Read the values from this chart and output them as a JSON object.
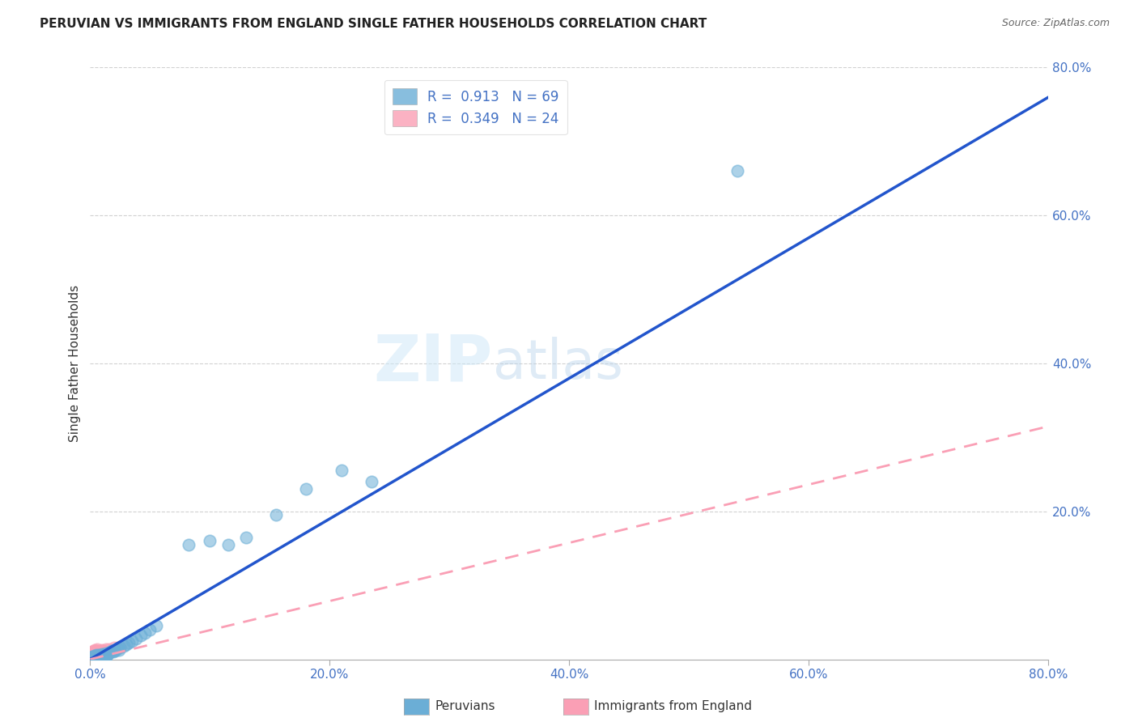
{
  "title": "PERUVIAN VS IMMIGRANTS FROM ENGLAND SINGLE FATHER HOUSEHOLDS CORRELATION CHART",
  "source": "Source: ZipAtlas.com",
  "ylabel": "Single Father Households",
  "xlim": [
    0,
    0.8
  ],
  "ylim": [
    0,
    0.8
  ],
  "xtick_labels": [
    "0.0%",
    "20.0%",
    "40.0%",
    "60.0%",
    "80.0%"
  ],
  "xtick_vals": [
    0.0,
    0.2,
    0.4,
    0.6,
    0.8
  ],
  "ytick_labels": [
    "20.0%",
    "40.0%",
    "60.0%",
    "80.0%"
  ],
  "ytick_vals": [
    0.2,
    0.4,
    0.6,
    0.8
  ],
  "peruvian_color": "#6baed6",
  "england_color": "#fa9fb5",
  "peruvian_R": 0.913,
  "peruvian_N": 69,
  "england_R": 0.349,
  "england_N": 24,
  "legend_label_1": "Peruvians",
  "legend_label_2": "Immigrants from England",
  "background_color": "#ffffff",
  "grid_color": "#cccccc",
  "watermark_zip": "ZIP",
  "watermark_atlas": "atlas",
  "peru_line_x": [
    0.0,
    0.8
  ],
  "peru_line_y": [
    0.0,
    0.76
  ],
  "eng_line_x": [
    0.0,
    0.8
  ],
  "eng_line_y": [
    0.0,
    0.315
  ],
  "peru_scatter_x": [
    0.001,
    0.001,
    0.001,
    0.002,
    0.002,
    0.002,
    0.002,
    0.003,
    0.003,
    0.003,
    0.004,
    0.004,
    0.004,
    0.004,
    0.005,
    0.005,
    0.005,
    0.005,
    0.006,
    0.006,
    0.006,
    0.007,
    0.007,
    0.007,
    0.007,
    0.008,
    0.008,
    0.009,
    0.009,
    0.009,
    0.01,
    0.01,
    0.01,
    0.011,
    0.011,
    0.012,
    0.012,
    0.013,
    0.013,
    0.014,
    0.014,
    0.015,
    0.016,
    0.017,
    0.018,
    0.019,
    0.02,
    0.021,
    0.023,
    0.024,
    0.025,
    0.028,
    0.03,
    0.032,
    0.035,
    0.038,
    0.042,
    0.046,
    0.05,
    0.055,
    0.082,
    0.1,
    0.115,
    0.13,
    0.155,
    0.18,
    0.21,
    0.235,
    0.54
  ],
  "peru_scatter_y": [
    0.002,
    0.003,
    0.001,
    0.002,
    0.003,
    0.004,
    0.001,
    0.003,
    0.004,
    0.002,
    0.002,
    0.003,
    0.005,
    0.001,
    0.003,
    0.004,
    0.006,
    0.002,
    0.003,
    0.005,
    0.002,
    0.004,
    0.003,
    0.006,
    0.002,
    0.005,
    0.003,
    0.004,
    0.006,
    0.002,
    0.005,
    0.007,
    0.003,
    0.006,
    0.004,
    0.007,
    0.005,
    0.008,
    0.004,
    0.007,
    0.005,
    0.008,
    0.009,
    0.01,
    0.011,
    0.01,
    0.013,
    0.012,
    0.015,
    0.013,
    0.016,
    0.018,
    0.02,
    0.022,
    0.025,
    0.028,
    0.032,
    0.036,
    0.04,
    0.045,
    0.155,
    0.16,
    0.155,
    0.165,
    0.195,
    0.23,
    0.255,
    0.24,
    0.66
  ],
  "eng_scatter_x": [
    0.001,
    0.001,
    0.002,
    0.002,
    0.002,
    0.003,
    0.003,
    0.003,
    0.004,
    0.004,
    0.005,
    0.005,
    0.006,
    0.006,
    0.007,
    0.007,
    0.008,
    0.009,
    0.01,
    0.011,
    0.013,
    0.016,
    0.02,
    0.025
  ],
  "eng_scatter_y": [
    0.003,
    0.008,
    0.006,
    0.01,
    0.003,
    0.009,
    0.012,
    0.005,
    0.008,
    0.013,
    0.007,
    0.011,
    0.009,
    0.014,
    0.008,
    0.012,
    0.01,
    0.011,
    0.013,
    0.012,
    0.014,
    0.014,
    0.016,
    0.017
  ]
}
